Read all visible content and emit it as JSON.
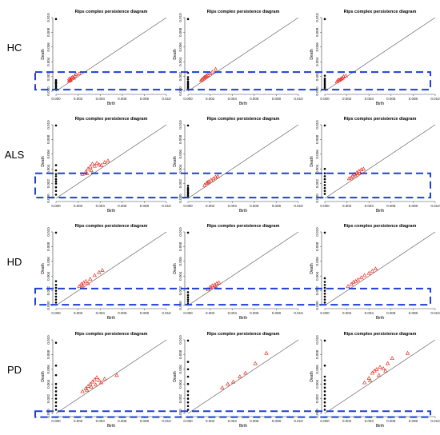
{
  "row_labels": [
    "HC",
    "ALS",
    "HD",
    "PD"
  ],
  "highlight_color": "#1f3fd6",
  "diagonal_color": "#555555",
  "h0_color": "#000000",
  "h1_color": "#e8332a",
  "chart_data": [
    {
      "type": "scatter",
      "row": "HC",
      "col": 1,
      "title": "Rips complex persistence diagram",
      "xlabel": "Birth",
      "ylabel": "Death",
      "xlim": [
        0,
        0.01
      ],
      "ylim": [
        0,
        0.01
      ],
      "xticks": [
        "0.000",
        "0.002",
        "0.004",
        "0.006",
        "0.008",
        "0.010"
      ],
      "yticks": [
        "0.000",
        "0.002",
        "0.004",
        "0.006",
        "0.008",
        "0.010"
      ],
      "h0_x": 0,
      "h0_deaths": [
        0.0002,
        0.0004,
        0.0006,
        0.0008,
        0.001,
        0.0011,
        0.0012,
        0.0013,
        0.0015,
        0.0098
      ],
      "h1_points": [
        [
          0.0012,
          0.0014
        ],
        [
          0.0013,
          0.0016
        ],
        [
          0.0015,
          0.0019
        ],
        [
          0.0016,
          0.0018
        ],
        [
          0.0018,
          0.0023
        ],
        [
          0.0012,
          0.0017
        ],
        [
          0.0017,
          0.0021
        ],
        [
          0.0021,
          0.0024
        ],
        [
          0.0013,
          0.0015
        ],
        [
          0.0014,
          0.0018
        ]
      ],
      "highlight_death_range": [
        0.0002,
        0.0026
      ]
    },
    {
      "type": "scatter",
      "row": "HC",
      "col": 2,
      "title": "Rips complex persistence diagram",
      "xlabel": "Birth",
      "ylabel": "Death",
      "xlim": [
        0,
        0.01
      ],
      "ylim": [
        0,
        0.01
      ],
      "xticks": [
        "0.000",
        "0.002",
        "0.004",
        "0.006",
        "0.008",
        "0.010"
      ],
      "yticks": [
        "0.000",
        "0.002",
        "0.004",
        "0.006",
        "0.008",
        "0.010"
      ],
      "h0_x": 0,
      "h0_deaths": [
        0.0003,
        0.0005,
        0.0007,
        0.0009,
        0.0011,
        0.0013,
        0.0016,
        0.0019,
        0.0025,
        0.0098
      ],
      "h1_points": [
        [
          0.0012,
          0.0015
        ],
        [
          0.0014,
          0.0018
        ],
        [
          0.0016,
          0.002
        ],
        [
          0.0018,
          0.0022
        ],
        [
          0.002,
          0.0024
        ],
        [
          0.0022,
          0.0026
        ],
        [
          0.0015,
          0.0019
        ],
        [
          0.0013,
          0.0016
        ],
        [
          0.0025,
          0.003
        ],
        [
          0.0017,
          0.0021
        ]
      ],
      "highlight_death_range": [
        0.0002,
        0.0026
      ]
    },
    {
      "type": "scatter",
      "row": "HC",
      "col": 3,
      "title": "Rips complex persistence diagram",
      "xlabel": "Birth",
      "ylabel": "Death",
      "xlim": [
        0,
        0.01
      ],
      "ylim": [
        0,
        0.01
      ],
      "xticks": [
        "0.000",
        "0.002",
        "0.004",
        "0.006",
        "0.008",
        "0.010"
      ],
      "yticks": [
        "0.000",
        "0.002",
        "0.004",
        "0.006",
        "0.008",
        "0.010"
      ],
      "h0_x": 0,
      "h0_deaths": [
        0.0003,
        0.0005,
        0.0007,
        0.0009,
        0.0011,
        0.0013,
        0.0015,
        0.0017,
        0.0021,
        0.0098
      ],
      "h1_points": [
        [
          0.0011,
          0.0013
        ],
        [
          0.0013,
          0.0015
        ],
        [
          0.0015,
          0.0017
        ],
        [
          0.0017,
          0.002
        ],
        [
          0.0014,
          0.0016
        ],
        [
          0.0012,
          0.0015
        ],
        [
          0.0016,
          0.0018
        ],
        [
          0.0019,
          0.0021
        ]
      ],
      "highlight_death_range": [
        0.0002,
        0.0026
      ]
    },
    {
      "type": "scatter",
      "row": "ALS",
      "col": 1,
      "title": "Rips complex persistence diagram",
      "xlabel": "Birth",
      "ylabel": "Death",
      "xlim": [
        0,
        0.01
      ],
      "ylim": [
        0,
        0.01
      ],
      "xticks": [
        "0.000",
        "0.002",
        "0.004",
        "0.006",
        "0.008",
        "0.010"
      ],
      "yticks": [
        "0.000",
        "0.002",
        "0.004",
        "0.006",
        "0.008",
        "0.010"
      ],
      "h0_x": 0,
      "h0_deaths": [
        0.0005,
        0.001,
        0.0015,
        0.002,
        0.0023,
        0.0026,
        0.003,
        0.0033,
        0.0038,
        0.0045,
        0.0099
      ],
      "h1_points": [
        [
          0.0024,
          0.0033
        ],
        [
          0.0027,
          0.0036
        ],
        [
          0.0029,
          0.004
        ],
        [
          0.0031,
          0.0043
        ],
        [
          0.0033,
          0.0047
        ],
        [
          0.0035,
          0.0044
        ],
        [
          0.0037,
          0.0048
        ],
        [
          0.0039,
          0.0046
        ],
        [
          0.0041,
          0.0045
        ],
        [
          0.0044,
          0.0049
        ],
        [
          0.0047,
          0.0051
        ],
        [
          0.0032,
          0.0038
        ],
        [
          0.0028,
          0.0034
        ]
      ],
      "highlight_death_range": [
        0.0001,
        0.0034
      ]
    },
    {
      "type": "scatter",
      "row": "ALS",
      "col": 2,
      "title": "Rips complex persistence diagram",
      "xlabel": "Birth",
      "ylabel": "Death",
      "xlim": [
        0,
        0.01
      ],
      "ylim": [
        0,
        0.01
      ],
      "xticks": [
        "0.000",
        "0.002",
        "0.004",
        "0.006",
        "0.008",
        "0.010"
      ],
      "yticks": [
        "0.000",
        "0.002",
        "0.004",
        "0.006",
        "0.008",
        "0.010"
      ],
      "h0_x": 0,
      "h0_deaths": [
        0.0002,
        0.0004,
        0.0006,
        0.0008,
        0.001,
        0.0012,
        0.0014,
        0.0017,
        0.0099
      ],
      "h1_points": [
        [
          0.0015,
          0.0018
        ],
        [
          0.0017,
          0.0021
        ],
        [
          0.0019,
          0.0023
        ],
        [
          0.0021,
          0.0025
        ],
        [
          0.0023,
          0.0027
        ],
        [
          0.0025,
          0.0029
        ],
        [
          0.0027,
          0.003
        ],
        [
          0.0018,
          0.0022
        ]
      ],
      "highlight_death_range": [
        0.0001,
        0.0034
      ]
    },
    {
      "type": "scatter",
      "row": "ALS",
      "col": 3,
      "title": "Rips complex persistence diagram",
      "xlabel": "Birth",
      "ylabel": "Death",
      "xlim": [
        0,
        0.01
      ],
      "ylim": [
        0,
        0.01
      ],
      "xticks": [
        "0.000",
        "0.002",
        "0.004",
        "0.006",
        "0.008",
        "0.010"
      ],
      "yticks": [
        "0.000",
        "0.002",
        "0.004",
        "0.006",
        "0.008",
        "0.010"
      ],
      "h0_x": 0,
      "h0_deaths": [
        0.0006,
        0.001,
        0.0014,
        0.0018,
        0.0022,
        0.0026,
        0.003,
        0.0034,
        0.004,
        0.0099
      ],
      "h1_points": [
        [
          0.0022,
          0.0027
        ],
        [
          0.0025,
          0.003
        ],
        [
          0.0027,
          0.0033
        ],
        [
          0.0029,
          0.0035
        ],
        [
          0.0031,
          0.0037
        ],
        [
          0.0033,
          0.0039
        ],
        [
          0.0035,
          0.004
        ],
        [
          0.0028,
          0.0031
        ],
        [
          0.0024,
          0.0028
        ],
        [
          0.003,
          0.0034
        ]
      ],
      "highlight_death_range": [
        0.0001,
        0.0034
      ]
    },
    {
      "type": "scatter",
      "row": "HD",
      "col": 1,
      "title": "Rips complex persistence diagram",
      "xlabel": "Birth",
      "ylabel": "Death",
      "xlim": [
        0,
        0.01
      ],
      "ylim": [
        0,
        0.01
      ],
      "xticks": [
        "0.000",
        "0.002",
        "0.004",
        "0.006",
        "0.008",
        "0.010"
      ],
      "yticks": [
        "0.000",
        "0.002",
        "0.004",
        "0.006",
        "0.008",
        "0.010"
      ],
      "h0_x": 0,
      "h0_deaths": [
        0.0004,
        0.0008,
        0.0012,
        0.0016,
        0.002,
        0.0024,
        0.0028,
        0.0033,
        0.0099
      ],
      "h1_points": [
        [
          0.0021,
          0.0026
        ],
        [
          0.0023,
          0.0029
        ],
        [
          0.0025,
          0.0031
        ],
        [
          0.0027,
          0.0033
        ],
        [
          0.0029,
          0.003
        ],
        [
          0.0031,
          0.0036
        ],
        [
          0.0035,
          0.0041
        ],
        [
          0.0039,
          0.0045
        ],
        [
          0.0042,
          0.0048
        ],
        [
          0.0024,
          0.0027
        ]
      ],
      "highlight_death_range": [
        0.0001,
        0.0023
      ]
    },
    {
      "type": "scatter",
      "row": "HD",
      "col": 2,
      "title": "Rips complex persistence diagram",
      "xlabel": "Birth",
      "ylabel": "Death",
      "xlim": [
        0,
        0.01
      ],
      "ylim": [
        0,
        0.01
      ],
      "xticks": [
        "0.000",
        "0.002",
        "0.004",
        "0.006",
        "0.008",
        "0.010"
      ],
      "yticks": [
        "0.000",
        "0.002",
        "0.004",
        "0.006",
        "0.008",
        "0.010"
      ],
      "h0_x": 0,
      "h0_deaths": [
        0.0002,
        0.0005,
        0.0008,
        0.0011,
        0.0014,
        0.0018,
        0.0023,
        0.0099
      ],
      "h1_points": [
        [
          0.0018,
          0.0022
        ],
        [
          0.002,
          0.0025
        ],
        [
          0.0022,
          0.0027
        ],
        [
          0.0024,
          0.0028
        ],
        [
          0.0026,
          0.003
        ],
        [
          0.0028,
          0.0031
        ],
        [
          0.0021,
          0.0024
        ],
        [
          0.0025,
          0.0026
        ]
      ],
      "highlight_death_range": [
        0.0001,
        0.0023
      ]
    },
    {
      "type": "scatter",
      "row": "HD",
      "col": 3,
      "title": "Rips complex persistence diagram",
      "xlabel": "Birth",
      "ylabel": "Death",
      "xlim": [
        0,
        0.01
      ],
      "ylim": [
        0,
        0.01
      ],
      "xticks": [
        "0.000",
        "0.002",
        "0.004",
        "0.006",
        "0.008",
        "0.010"
      ],
      "yticks": [
        "0.000",
        "0.002",
        "0.004",
        "0.006",
        "0.008",
        "0.010"
      ],
      "h0_x": 0,
      "h0_deaths": [
        0.0004,
        0.0008,
        0.0012,
        0.0016,
        0.002,
        0.0024,
        0.0028,
        0.0032,
        0.0037,
        0.0099
      ],
      "h1_points": [
        [
          0.0021,
          0.0026
        ],
        [
          0.0024,
          0.0029
        ],
        [
          0.0026,
          0.0032
        ],
        [
          0.0028,
          0.0033
        ],
        [
          0.003,
          0.0035
        ],
        [
          0.0033,
          0.0038
        ],
        [
          0.0036,
          0.0041
        ],
        [
          0.004,
          0.0044
        ],
        [
          0.0043,
          0.0047
        ],
        [
          0.0046,
          0.005
        ]
      ],
      "highlight_death_range": [
        0.0001,
        0.0023
      ]
    },
    {
      "type": "scatter",
      "row": "PD",
      "col": 1,
      "title": "Rips complex persistence diagram",
      "xlabel": "Birth",
      "ylabel": "Death",
      "xlim": [
        0,
        0.01
      ],
      "ylim": [
        0,
        0.01
      ],
      "xticks": [
        "0.000",
        "0.002",
        "0.004",
        "0.006",
        "0.008",
        "0.010"
      ],
      "yticks": [
        "0.000",
        "0.002",
        "0.004",
        "0.006",
        "0.008",
        "0.010"
      ],
      "h0_x": 0,
      "h0_deaths": [
        0.0005,
        0.001,
        0.0015,
        0.002,
        0.0025,
        0.003,
        0.0035,
        0.004,
        0.0052,
        0.0065,
        0.0096
      ],
      "h1_points": [
        [
          0.0024,
          0.003
        ],
        [
          0.0027,
          0.0034
        ],
        [
          0.0029,
          0.0037
        ],
        [
          0.0031,
          0.004
        ],
        [
          0.0033,
          0.0043
        ],
        [
          0.0035,
          0.0046
        ],
        [
          0.0037,
          0.0049
        ],
        [
          0.0039,
          0.0045
        ],
        [
          0.0041,
          0.0042
        ],
        [
          0.0032,
          0.0036
        ],
        [
          0.0036,
          0.0039
        ],
        [
          0.0044,
          0.0047
        ],
        [
          0.0055,
          0.0052
        ],
        [
          0.0028,
          0.0032
        ]
      ],
      "highlight_death_range": [
        -0.0005,
        0.0003
      ]
    },
    {
      "type": "scatter",
      "row": "PD",
      "col": 2,
      "title": "Rips complex persistence diagram",
      "xlabel": "Birth",
      "ylabel": "Death",
      "xlim": [
        0,
        0.01
      ],
      "ylim": [
        0,
        0.01
      ],
      "xticks": [
        "0.000",
        "0.002",
        "0.004",
        "0.006",
        "0.008",
        "0.010"
      ],
      "yticks": [
        "0.000",
        "0.002",
        "0.004",
        "0.006",
        "0.008",
        "0.010"
      ],
      "h0_x": 0,
      "h0_deaths": [
        0.0005,
        0.001,
        0.0015,
        0.002,
        0.0025,
        0.003,
        0.004,
        0.005,
        0.006,
        0.007,
        0.0099
      ],
      "h1_points": [
        [
          0.0031,
          0.0035
        ],
        [
          0.0036,
          0.004
        ],
        [
          0.0041,
          0.0043
        ],
        [
          0.0047,
          0.005
        ],
        [
          0.0052,
          0.0055
        ],
        [
          0.0061,
          0.0068
        ],
        [
          0.0071,
          0.0082
        ]
      ],
      "highlight_death_range": [
        -0.0005,
        0.0003
      ]
    },
    {
      "type": "scatter",
      "row": "PD",
      "col": 3,
      "title": "Rips complex persistence diagram",
      "xlabel": "Birth",
      "ylabel": "Death",
      "xlim": [
        0,
        0.01
      ],
      "ylim": [
        0,
        0.01
      ],
      "xticks": [
        "0.000",
        "0.002",
        "0.004",
        "0.006",
        "0.008",
        "0.010"
      ],
      "yticks": [
        "0.000",
        "0.002",
        "0.004",
        "0.006",
        "0.008",
        "0.010"
      ],
      "h0_x": 0,
      "h0_deaths": [
        0.0005,
        0.001,
        0.0015,
        0.002,
        0.0025,
        0.003,
        0.0035,
        0.004,
        0.0045,
        0.005,
        0.0065,
        0.0099
      ],
      "h1_points": [
        [
          0.0036,
          0.0042
        ],
        [
          0.004,
          0.0048
        ],
        [
          0.0043,
          0.0055
        ],
        [
          0.0045,
          0.0058
        ],
        [
          0.0047,
          0.006
        ],
        [
          0.005,
          0.0063
        ],
        [
          0.0053,
          0.0061
        ],
        [
          0.0057,
          0.0068
        ],
        [
          0.0041,
          0.0045
        ],
        [
          0.0049,
          0.0052
        ],
        [
          0.0055,
          0.0058
        ],
        [
          0.0061,
          0.0075
        ],
        [
          0.0075,
          0.0082
        ]
      ],
      "highlight_death_range": [
        -0.0005,
        0.0003
      ]
    }
  ]
}
